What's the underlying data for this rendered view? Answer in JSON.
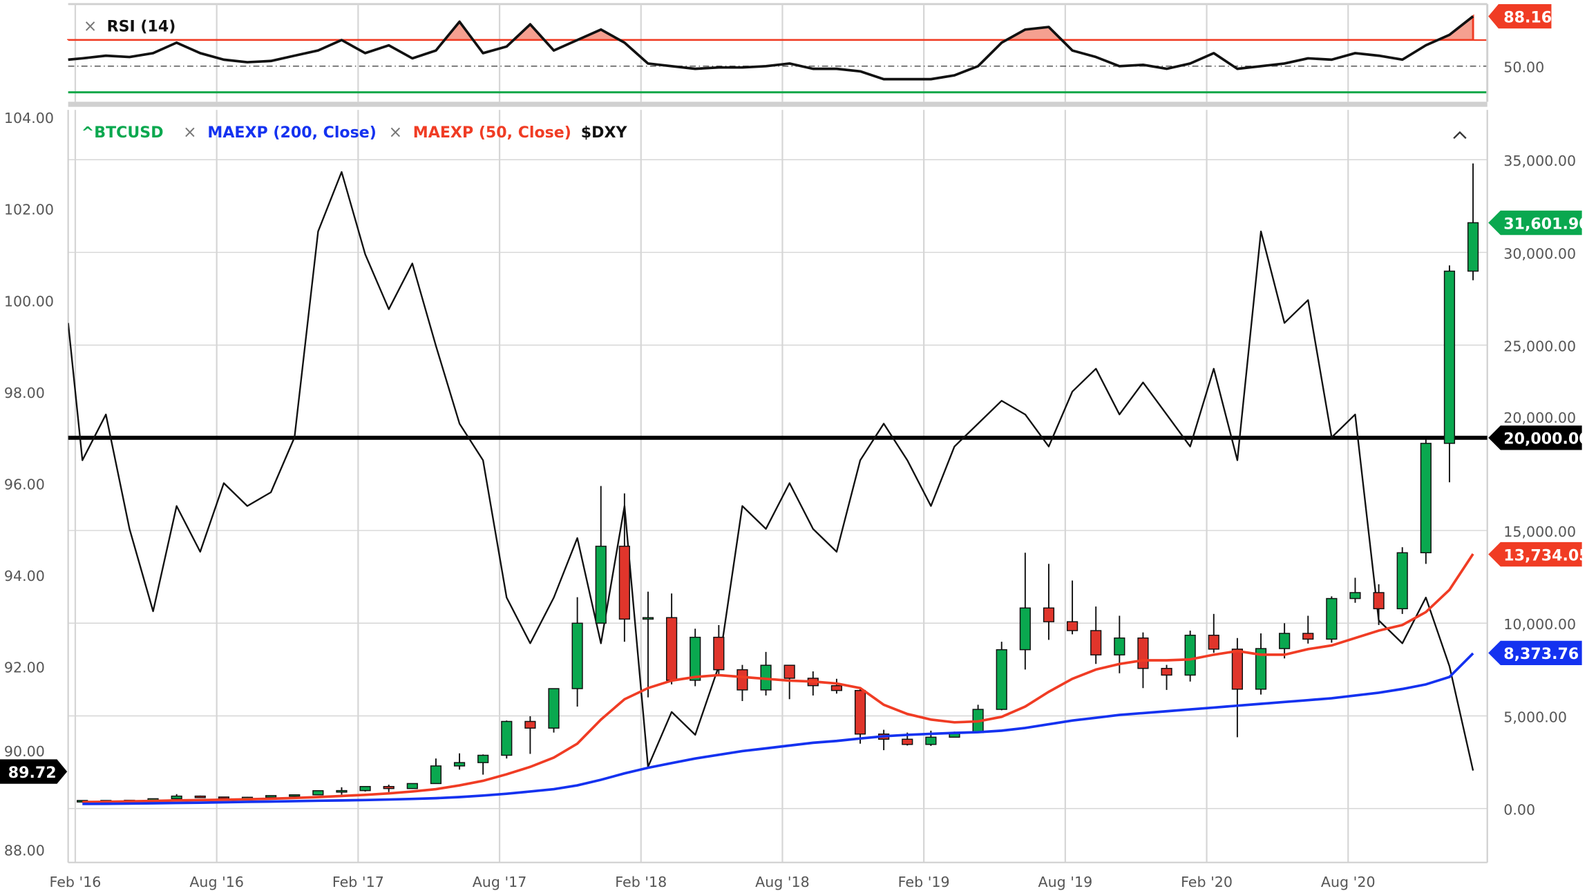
{
  "colors": {
    "btc_up": "#0aa84f",
    "btc_down": "#e0352b",
    "ema200": "#1432f0",
    "ema50": "#f03c24",
    "dxy": "#111111",
    "rsi": "#111111",
    "rsi_overbought": "#f03c24",
    "rsi_oversold": "#11a84a",
    "grid": "#d6d6d6"
  },
  "rsi_panel": {
    "label": "RSI (14)",
    "close_icon": "×",
    "axis_label": "50.00",
    "last_value_tag": "88.16"
  },
  "legend": {
    "btc": "^BTCUSD",
    "ema200_close_icon": "×",
    "ema200": "MAEXP (200, Close)",
    "ema50_close_icon": "×",
    "ema50": "MAEXP (50, Close)",
    "dxy": "$DXY",
    "collapse_icon": "^"
  },
  "tags": {
    "btc_last": "31,601.90",
    "level": "20,000.00",
    "ema50_last": "13,734.05",
    "ema200_last": "8,373.76",
    "dxy_last": "89.72"
  },
  "chart_data": {
    "type": "candlestick+line",
    "xlabel": "",
    "x_ticks": [
      "Feb '16",
      "Aug '16",
      "Feb '17",
      "Aug '17",
      "Feb '18",
      "Aug '18",
      "Feb '19",
      "Aug '19",
      "Feb '20",
      "Aug '20"
    ],
    "left_axis": {
      "series": "$DXY",
      "range": [
        88,
        104
      ],
      "ticks": [
        "104.00",
        "102.00",
        "100.00",
        "98.00",
        "96.00",
        "94.00",
        "92.00",
        "90.00",
        "88.00"
      ]
    },
    "right_axis": {
      "series": "^BTCUSD",
      "range": [
        0,
        35000
      ],
      "ticks": [
        "35,000.00",
        "30,000.00",
        "25,000.00",
        "20,000.00",
        "15,000.00",
        "10,000.00",
        "5,000.00",
        "0.00"
      ]
    },
    "grid": true,
    "horizontal_line": 20000,
    "btc_candles_columns": [
      "date",
      "open",
      "high",
      "low",
      "close"
    ],
    "btc_candles": [
      [
        "2016-02",
        "370",
        "445",
        "365",
        "437"
      ],
      [
        "2016-03",
        "437",
        "440",
        "405",
        "416"
      ],
      [
        "2016-04",
        "416",
        "465",
        "410",
        "448"
      ],
      [
        "2016-05",
        "448",
        "535",
        "440",
        "531"
      ],
      [
        "2016-06",
        "531",
        "780",
        "530",
        "673"
      ],
      [
        "2016-07",
        "673",
        "700",
        "600",
        "624"
      ],
      [
        "2016-08",
        "624",
        "626",
        "530",
        "575"
      ],
      [
        "2016-09",
        "575",
        "630",
        "570",
        "609"
      ],
      [
        "2016-10",
        "609",
        "715",
        "605",
        "700"
      ],
      [
        "2016-11",
        "700",
        "755",
        "690",
        "742"
      ],
      [
        "2016-12",
        "742",
        "975",
        "740",
        "964"
      ],
      [
        "2017-01",
        "964",
        "1150",
        "750",
        "970"
      ],
      [
        "2017-02",
        "970",
        "1200",
        "920",
        "1190"
      ],
      [
        "2017-03",
        "1190",
        "1290",
        "890",
        "1080"
      ],
      [
        "2017-04",
        "1080",
        "1350",
        "1060",
        "1350"
      ],
      [
        "2017-05",
        "1350",
        "2700",
        "1340",
        "2300"
      ],
      [
        "2017-06",
        "2300",
        "2980",
        "2100",
        "2480"
      ],
      [
        "2017-07",
        "2480",
        "2920",
        "1830",
        "2875"
      ],
      [
        "2017-08",
        "2875",
        "4750",
        "2700",
        "4700"
      ],
      [
        "2017-09",
        "4700",
        "4980",
        "2950",
        "4340"
      ],
      [
        "2017-10",
        "4340",
        "6470",
        "4100",
        "6470"
      ],
      [
        "2017-11",
        "6470",
        "11400",
        "5500",
        "10000"
      ],
      [
        "2017-12",
        "10000",
        "17400",
        "10000",
        "14150"
      ],
      [
        "2018-01",
        "14150",
        "17000",
        "9000",
        "10220"
      ],
      [
        "2018-02",
        "10220",
        "11700",
        "6000",
        "10300"
      ],
      [
        "2018-03",
        "10300",
        "11600",
        "6700",
        "6920"
      ],
      [
        "2018-04",
        "6920",
        "9700",
        "6600",
        "9240"
      ],
      [
        "2018-05",
        "9240",
        "9900",
        "7200",
        "7490"
      ],
      [
        "2018-06",
        "7490",
        "7750",
        "5800",
        "6400"
      ],
      [
        "2018-07",
        "6400",
        "8450",
        "6100",
        "7730"
      ],
      [
        "2018-08",
        "7730",
        "7750",
        "5900",
        "7030"
      ],
      [
        "2018-09",
        "7030",
        "7400",
        "6100",
        "6630"
      ],
      [
        "2018-10",
        "6630",
        "7000",
        "6200",
        "6370"
      ],
      [
        "2018-11",
        "6370",
        "6550",
        "3500",
        "4020"
      ],
      [
        "2018-12",
        "4020",
        "4250",
        "3150",
        "3740"
      ],
      [
        "2019-01",
        "3740",
        "4100",
        "3400",
        "3460"
      ],
      [
        "2019-02",
        "3460",
        "4200",
        "3380",
        "3850"
      ],
      [
        "2019-03",
        "3850",
        "4150",
        "3850",
        "4100"
      ],
      [
        "2019-04",
        "4100",
        "5600",
        "4100",
        "5350"
      ],
      [
        "2019-05",
        "5350",
        "9000",
        "5300",
        "8570"
      ],
      [
        "2019-06",
        "8570",
        "13800",
        "7500",
        "10820"
      ],
      [
        "2019-07",
        "10820",
        "13200",
        "9100",
        "10080"
      ],
      [
        "2019-08",
        "10080",
        "12300",
        "9400",
        "9600"
      ],
      [
        "2019-09",
        "9600",
        "10900",
        "7800",
        "8290"
      ],
      [
        "2019-10",
        "8290",
        "10400",
        "7300",
        "9200"
      ],
      [
        "2019-11",
        "9200",
        "9500",
        "6500",
        "7560"
      ],
      [
        "2019-12",
        "7560",
        "7750",
        "6400",
        "7200"
      ],
      [
        "2020-01",
        "7200",
        "9600",
        "6850",
        "9350"
      ],
      [
        "2020-02",
        "9350",
        "10500",
        "8400",
        "8600"
      ],
      [
        "2020-03",
        "8600",
        "9200",
        "3850",
        "6440"
      ],
      [
        "2020-04",
        "6440",
        "9450",
        "6150",
        "8630"
      ],
      [
        "2020-05",
        "8630",
        "10000",
        "8100",
        "9450"
      ],
      [
        "2020-06",
        "9450",
        "10400",
        "8900",
        "9140"
      ],
      [
        "2020-07",
        "9140",
        "11450",
        "8950",
        "11330"
      ],
      [
        "2020-08",
        "11330",
        "12450",
        "11100",
        "11650"
      ],
      [
        "2020-09",
        "11650",
        "12100",
        "9900",
        "10780"
      ],
      [
        "2020-10",
        "10780",
        "14100",
        "10500",
        "13800"
      ],
      [
        "2020-11",
        "13800",
        "19900",
        "13200",
        "19700"
      ],
      [
        "2020-12",
        "19700",
        "29300",
        "17600",
        "28990"
      ],
      [
        "2021-01",
        "28990",
        "34800",
        "28500",
        "31601.90"
      ]
    ],
    "months": [
      "2016-02",
      "2016-03",
      "2016-04",
      "2016-05",
      "2016-06",
      "2016-07",
      "2016-08",
      "2016-09",
      "2016-10",
      "2016-11",
      "2016-12",
      "2017-01",
      "2017-02",
      "2017-03",
      "2017-04",
      "2017-05",
      "2017-06",
      "2017-07",
      "2017-08",
      "2017-09",
      "2017-10",
      "2017-11",
      "2017-12",
      "2018-01",
      "2018-02",
      "2018-03",
      "2018-04",
      "2018-05",
      "2018-06",
      "2018-07",
      "2018-08",
      "2018-09",
      "2018-10",
      "2018-11",
      "2018-12",
      "2019-01",
      "2019-02",
      "2019-03",
      "2019-04",
      "2019-05",
      "2019-06",
      "2019-07",
      "2019-08",
      "2019-09",
      "2019-10",
      "2019-11",
      "2019-12",
      "2020-01",
      "2020-02",
      "2020-03",
      "2020-04",
      "2020-05",
      "2020-06",
      "2020-07",
      "2020-08",
      "2020-09",
      "2020-10",
      "2020-11",
      "2020-12",
      "2021-01"
    ],
    "series": [
      {
        "name": "MAEXP (200, Close)",
        "axis": "right",
        "values": [
          250,
          260,
          270,
          285,
          300,
          320,
          340,
          360,
          380,
          400,
          420,
          440,
          460,
          490,
          520,
          560,
          620,
          700,
          800,
          920,
          1050,
          1250,
          1550,
          1900,
          2200,
          2450,
          2700,
          2900,
          3100,
          3250,
          3400,
          3550,
          3650,
          3780,
          3900,
          3980,
          4030,
          4080,
          4120,
          4200,
          4350,
          4550,
          4750,
          4900,
          5050,
          5150,
          5250,
          5350,
          5450,
          5550,
          5650,
          5750,
          5850,
          5950,
          6100,
          6250,
          6450,
          6700,
          7100,
          8373.76
        ]
      },
      {
        "name": "MAEXP (50, Close)",
        "axis": "right",
        "values": [
          350,
          370,
          390,
          410,
          440,
          460,
          480,
          500,
          530,
          570,
          620,
          680,
          740,
          820,
          920,
          1050,
          1250,
          1500,
          1850,
          2250,
          2750,
          3500,
          4800,
          5900,
          6500,
          6900,
          7100,
          7200,
          7100,
          7000,
          6900,
          6850,
          6750,
          6500,
          5600,
          5100,
          4800,
          4650,
          4700,
          4950,
          5500,
          6300,
          7000,
          7500,
          7800,
          8000,
          8000,
          8050,
          8300,
          8500,
          8300,
          8300,
          8600,
          8800,
          9200,
          9600,
          9900,
          10600,
          11800,
          13734.05
        ]
      },
      {
        "name": "$DXY",
        "axis": "left",
        "values": [
          96.5,
          97.5,
          95.0,
          93.2,
          95.5,
          94.5,
          96.0,
          95.5,
          95.8,
          97.0,
          101.5,
          102.8,
          101.0,
          99.8,
          100.8,
          99.0,
          97.3,
          96.5,
          93.5,
          92.5,
          93.5,
          94.8,
          92.5,
          95.5,
          89.8,
          91.0,
          90.5,
          92.0,
          95.5,
          95.0,
          96.0,
          95.0,
          94.5,
          96.5,
          97.3,
          96.5,
          95.5,
          96.8,
          97.3,
          97.8,
          97.5,
          96.8,
          98.0,
          98.5,
          97.5,
          98.2,
          97.5,
          96.8,
          98.5,
          96.5,
          101.5,
          99.5,
          100.0,
          97.0,
          97.5,
          93.0,
          92.5,
          93.5,
          92.0,
          89.72
        ]
      }
    ],
    "rsi": {
      "name": "RSI (14)",
      "overbought": 70,
      "midline": 50,
      "oversold": 30,
      "values": [
        56,
        58,
        57,
        60,
        68,
        60,
        55,
        53,
        54,
        58,
        62,
        70,
        60,
        66,
        56,
        62,
        84,
        60,
        65,
        82,
        62,
        70,
        78,
        68,
        52,
        50,
        48,
        49,
        49,
        50,
        52,
        48,
        48,
        46,
        40,
        40,
        40,
        43,
        50,
        68,
        78,
        80,
        62,
        57,
        50,
        51,
        48,
        52,
        60,
        48,
        50,
        52,
        56,
        55,
        60,
        58,
        55,
        66,
        74,
        88.16
      ]
    }
  }
}
